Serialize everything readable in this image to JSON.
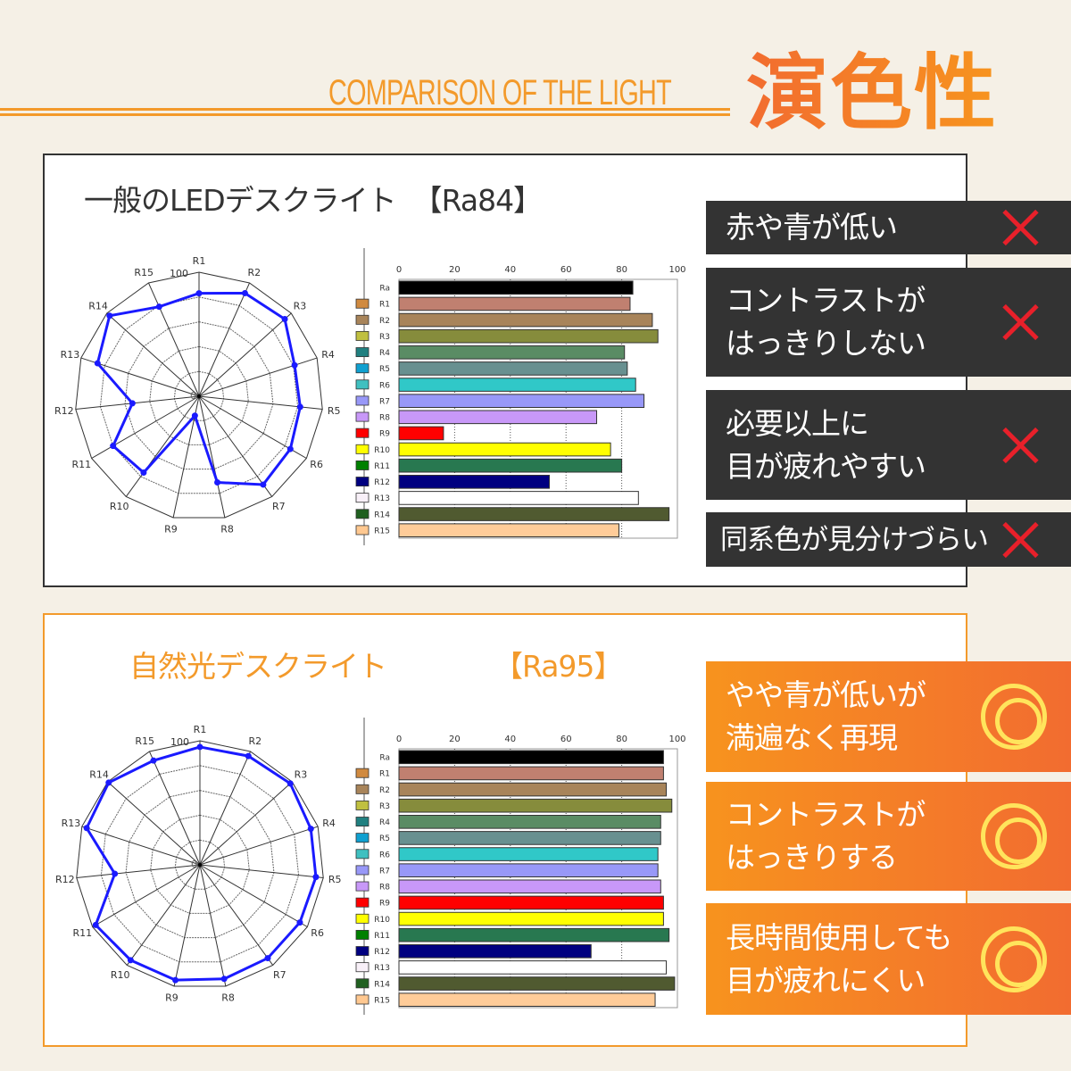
{
  "header": {
    "subtitle": "COMPARISON OF THE LIGHT",
    "title": "演色性",
    "accent": "#f39a2b"
  },
  "panels": [
    {
      "title": "一般のLEDデスクライト",
      "rating": "【Ra84】",
      "callouts": [
        {
          "text": "赤や青が低い",
          "mark": "x-icon"
        },
        {
          "text": "コントラストが\nはっきりしない",
          "mark": "x-icon"
        },
        {
          "text": "必要以上に\n目が疲れやすい",
          "mark": "x-icon"
        },
        {
          "text": "同系色が見分けづらい",
          "mark": "x-icon"
        }
      ]
    },
    {
      "title": "自然光デスクライト",
      "rating": "【Ra95】",
      "callouts": [
        {
          "text": "やや青が低いが\n満遍なく再現",
          "mark": "double-circle-icon"
        },
        {
          "text": "コントラストが\nはっきりする",
          "mark": "double-circle-icon"
        },
        {
          "text": "長時間使用しても\n目が疲れにくい",
          "mark": "double-circle-icon"
        }
      ]
    }
  ],
  "chart_data": [
    {
      "type": "radar",
      "axes": [
        "R1",
        "R2",
        "R3",
        "R4",
        "R5",
        "R6",
        "R7",
        "R8",
        "R9",
        "R10",
        "R11",
        "R12",
        "R13",
        "R14",
        "R15"
      ],
      "values": [
        83,
        91,
        93,
        81,
        82,
        85,
        88,
        71,
        16,
        76,
        80,
        54,
        86,
        97,
        79
      ],
      "range": [
        0,
        100
      ],
      "tick_labels": [
        "0",
        "100"
      ],
      "line_color": "#1a1aff"
    },
    {
      "type": "bar",
      "orientation": "horizontal",
      "categories": [
        "Ra",
        "R1",
        "R2",
        "R3",
        "R4",
        "R5",
        "R6",
        "R7",
        "R8",
        "R9",
        "R10",
        "R11",
        "R12",
        "R13",
        "R14",
        "R15"
      ],
      "values": [
        84,
        83,
        91,
        93,
        81,
        82,
        85,
        88,
        71,
        16,
        76,
        80,
        54,
        86,
        97,
        79
      ],
      "xlim": [
        0,
        100
      ],
      "xticks": [
        "0",
        "20",
        "40",
        "60",
        "80",
        "100"
      ],
      "grid": true,
      "bar_colors": [
        "#000000",
        "#c08070",
        "#a8845a",
        "#868c3c",
        "#5a8c64",
        "#689090",
        "#30c8c8",
        "#9898f8",
        "#c898f8",
        "#ff0000",
        "#ffff00",
        "#287850",
        "#000080",
        "#ffffff",
        "#505a30",
        "#ffcc99"
      ],
      "legend_colors": [
        "#d08a40",
        "#a8845a",
        "#c0c040",
        "#208080",
        "#10a0d0",
        "#40c0c0",
        "#9898f8",
        "#c898f8",
        "#ff0000",
        "#ffff00",
        "#008000",
        "#000080",
        "#f8f0f8",
        "#206020",
        "#ffc890"
      ]
    },
    {
      "type": "radar",
      "axes": [
        "R1",
        "R2",
        "R3",
        "R4",
        "R5",
        "R6",
        "R7",
        "R8",
        "R9",
        "R10",
        "R11",
        "R12",
        "R13",
        "R14",
        "R15"
      ],
      "values": [
        95,
        96,
        98,
        94,
        94,
        93,
        93,
        94,
        95,
        95,
        97,
        69,
        96,
        99,
        92
      ],
      "range": [
        0,
        100
      ],
      "tick_labels": [
        "0",
        "100"
      ],
      "line_color": "#1a1aff"
    },
    {
      "type": "bar",
      "orientation": "horizontal",
      "categories": [
        "Ra",
        "R1",
        "R2",
        "R3",
        "R4",
        "R5",
        "R6",
        "R7",
        "R8",
        "R9",
        "R10",
        "R11",
        "R12",
        "R13",
        "R14",
        "R15"
      ],
      "values": [
        95,
        95,
        96,
        98,
        94,
        94,
        93,
        93,
        94,
        95,
        95,
        97,
        69,
        96,
        99,
        92
      ],
      "xlim": [
        0,
        100
      ],
      "xticks": [
        "0",
        "20",
        "40",
        "60",
        "80",
        "100"
      ],
      "grid": true,
      "bar_colors": [
        "#000000",
        "#c08070",
        "#a8845a",
        "#868c3c",
        "#5a8c64",
        "#689090",
        "#30c8c8",
        "#9898f8",
        "#c898f8",
        "#ff0000",
        "#ffff00",
        "#287850",
        "#000080",
        "#ffffff",
        "#505a30",
        "#ffcc99"
      ],
      "legend_colors": [
        "#d08a40",
        "#a8845a",
        "#c0c040",
        "#208080",
        "#10a0d0",
        "#40c0c0",
        "#9898f8",
        "#c898f8",
        "#ff0000",
        "#ffff00",
        "#008000",
        "#000080",
        "#f8f0f8",
        "#206020",
        "#ffc890"
      ]
    }
  ]
}
